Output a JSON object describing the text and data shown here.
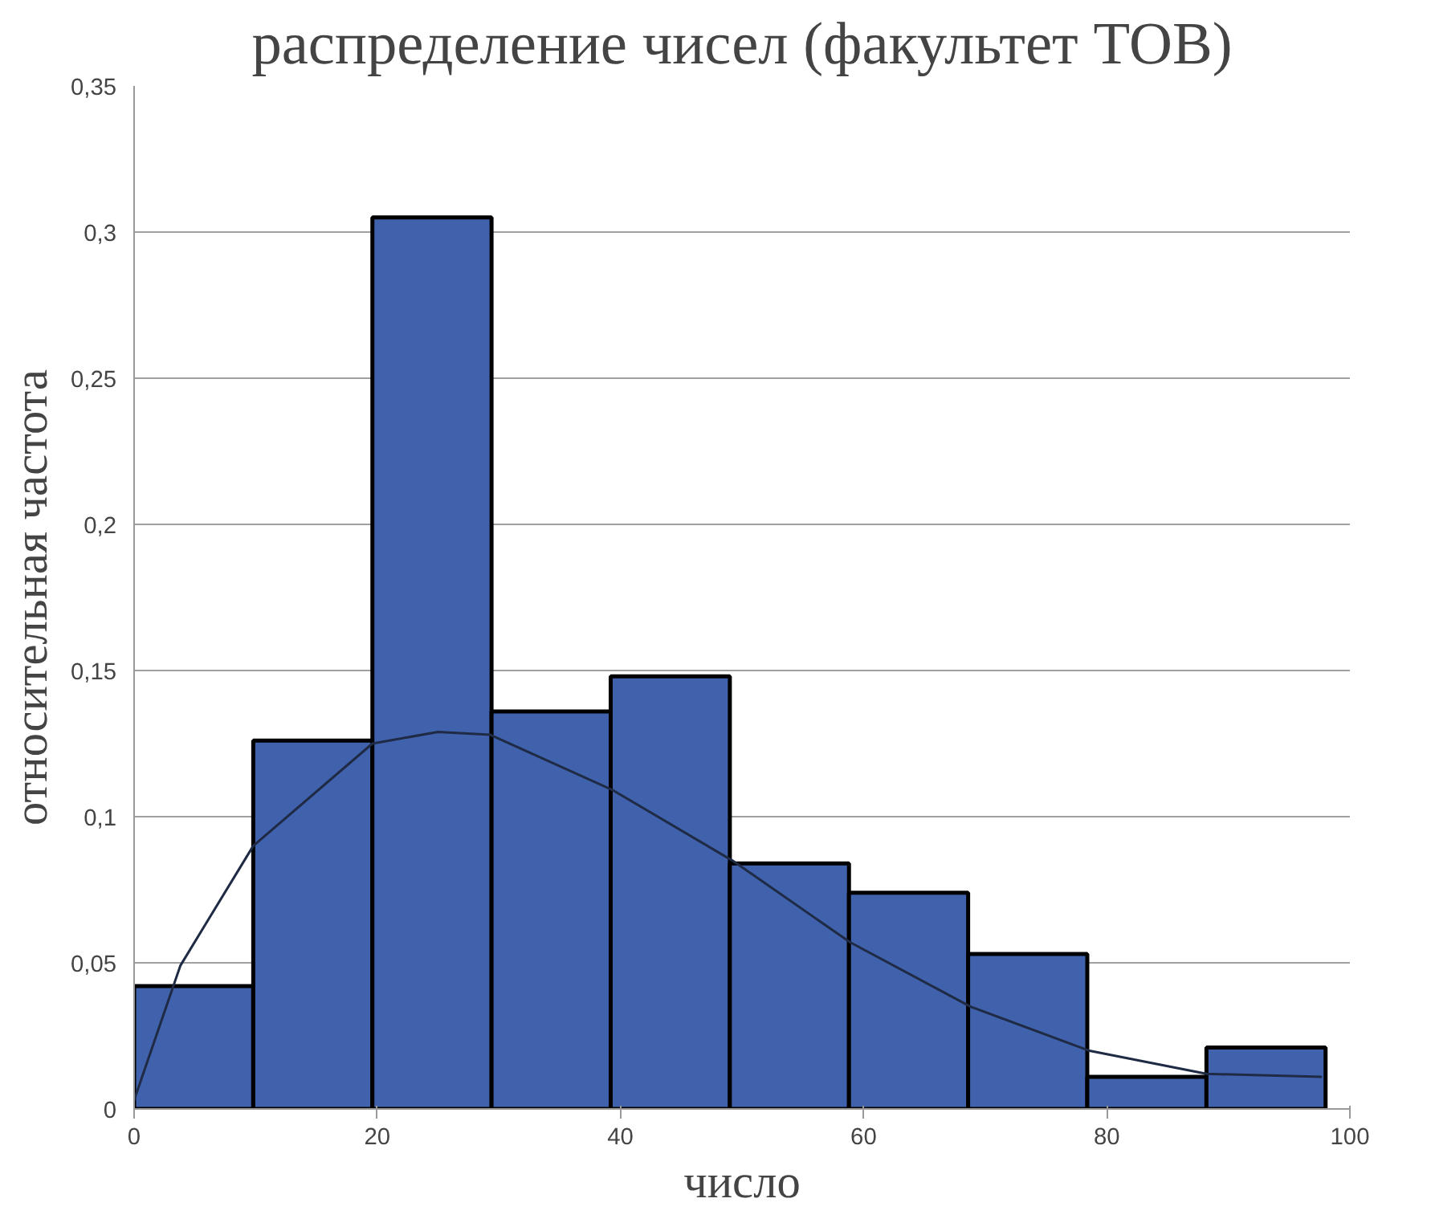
{
  "chart_data": {
    "type": "histogram",
    "title": "распределение чисел (факультет ТОВ)",
    "xlabel": "число",
    "ylabel": "относительная частота",
    "bins": [
      0,
      9.8,
      19.6,
      29.4,
      39.2,
      49,
      58.8,
      68.6,
      78.4,
      88.2,
      98
    ],
    "values": [
      0.042,
      0.126,
      0.305,
      0.136,
      0.148,
      0.084,
      0.074,
      0.053,
      0.011,
      0.021
    ],
    "color": "#4062ad",
    "series": [
      {
        "type": "line",
        "color": "#1f2a44",
        "x": [
          0,
          3.8,
          9.8,
          19.6,
          25,
          29.3,
          39.4,
          49.2,
          58.9,
          68.8,
          78.5,
          88.2,
          97.7
        ],
        "values": [
          0.003,
          0.049,
          0.09,
          0.125,
          0.129,
          0.128,
          0.109,
          0.085,
          0.057,
          0.035,
          0.02,
          0.012,
          0.011
        ]
      }
    ],
    "xlim": [
      0,
      100
    ],
    "xticks": [
      0,
      20,
      40,
      60,
      80,
      100
    ],
    "ylim": [
      0,
      0.35
    ],
    "yticks": [
      {
        "value": 0,
        "label": "0"
      },
      {
        "value": 0.05,
        "label": "0,05"
      },
      {
        "value": 0.1,
        "label": "0,1"
      },
      {
        "value": 0.15,
        "label": "0,15"
      },
      {
        "value": 0.2,
        "label": "0,2"
      },
      {
        "value": 0.25,
        "label": "0,25"
      },
      {
        "value": 0.3,
        "label": "0,3"
      },
      {
        "value": 0.35,
        "label": "0,35"
      }
    ],
    "grid": "y",
    "marker": "none",
    "line_style": "solid"
  }
}
